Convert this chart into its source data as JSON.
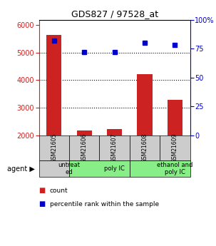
{
  "title": "GDS827 / 97528_at",
  "samples": [
    "GSM21605",
    "GSM21606",
    "GSM21607",
    "GSM21608",
    "GSM21609"
  ],
  "counts": [
    5650,
    2170,
    2210,
    4220,
    3280
  ],
  "percentiles": [
    82,
    72,
    72,
    80,
    78
  ],
  "ylim_left": [
    2000,
    6200
  ],
  "ylim_right": [
    0,
    100
  ],
  "yticks_left": [
    2000,
    3000,
    4000,
    5000,
    6000
  ],
  "yticks_right": [
    0,
    25,
    50,
    75,
    100
  ],
  "ytick_right_labels": [
    "0",
    "25",
    "50",
    "75",
    "100%"
  ],
  "bar_color": "#cc2222",
  "dot_color": "#0000cc",
  "agent_groups": [
    {
      "label": "untreat\ned",
      "start": 0,
      "end": 1,
      "color": "#cccccc"
    },
    {
      "label": "poly IC",
      "start": 1,
      "end": 3,
      "color": "#88ee88"
    },
    {
      "label": "ethanol and\npoly IC",
      "start": 3,
      "end": 5,
      "color": "#88ee88"
    }
  ],
  "sample_box_color": "#cccccc",
  "legend_items": [
    {
      "color": "#cc2222",
      "label": "count"
    },
    {
      "color": "#0000cc",
      "label": "percentile rank within the sample"
    }
  ],
  "background_color": "#ffffff",
  "plot_bg_color": "#ffffff",
  "gridline_color": "black",
  "gridline_style": "dotted",
  "bar_width": 0.5,
  "dot_marker": "s",
  "dot_size": 4
}
